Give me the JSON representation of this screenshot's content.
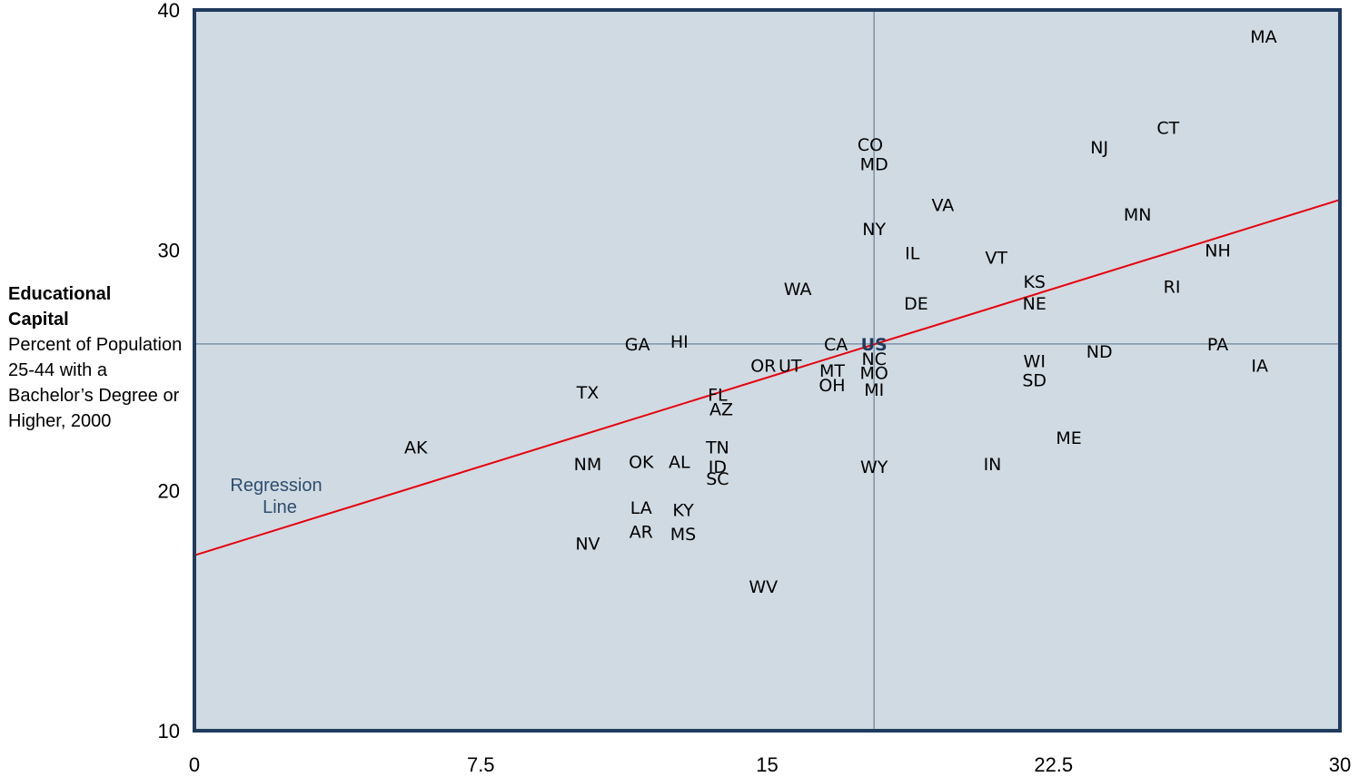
{
  "chart_data": {
    "type": "scatter",
    "ylabel_title": "Educational Capital",
    "ylabel_sub": "Percent of Population 25-44 with a Bachelor’s Degree or Higher, 2000",
    "xlim": [
      0,
      30
    ],
    "ylim": [
      10,
      40
    ],
    "x_ticks": [
      "0",
      "7.5",
      "15",
      "22.5",
      "30"
    ],
    "x_tick_values": [
      0,
      7.5,
      15,
      22.5,
      30
    ],
    "y_ticks": [
      "10",
      "20",
      "30",
      "40"
    ],
    "y_tick_values": [
      10,
      20,
      30,
      40
    ],
    "reference_lines": {
      "x": 17.8,
      "y": 26.1
    },
    "regression_line": {
      "label": "Regression Line",
      "x": [
        0,
        30
      ],
      "y": [
        17.3,
        32.1
      ]
    },
    "points": [
      {
        "label": "MA",
        "x": 28.0,
        "y": 38.9
      },
      {
        "label": "CT",
        "x": 25.5,
        "y": 35.1
      },
      {
        "label": "NJ",
        "x": 23.7,
        "y": 34.3
      },
      {
        "label": "CO",
        "x": 17.7,
        "y": 34.4
      },
      {
        "label": "MD",
        "x": 17.8,
        "y": 33.6
      },
      {
        "label": "VA",
        "x": 19.6,
        "y": 31.9
      },
      {
        "label": "MN",
        "x": 24.7,
        "y": 31.5
      },
      {
        "label": "NY",
        "x": 17.8,
        "y": 30.9
      },
      {
        "label": "IL",
        "x": 18.8,
        "y": 29.9
      },
      {
        "label": "VT",
        "x": 21.0,
        "y": 29.7
      },
      {
        "label": "NH",
        "x": 26.8,
        "y": 30.0
      },
      {
        "label": "KS",
        "x": 22.0,
        "y": 28.7
      },
      {
        "label": "RI",
        "x": 25.6,
        "y": 28.5
      },
      {
        "label": "WA",
        "x": 15.8,
        "y": 28.4
      },
      {
        "label": "DE",
        "x": 18.9,
        "y": 27.8
      },
      {
        "label": "NE",
        "x": 22.0,
        "y": 27.8
      },
      {
        "label": "GA",
        "x": 11.6,
        "y": 26.1
      },
      {
        "label": "HI",
        "x": 12.7,
        "y": 26.2
      },
      {
        "label": "CA",
        "x": 16.8,
        "y": 26.1
      },
      {
        "label": "US",
        "x": 17.8,
        "y": 26.1,
        "highlight": true
      },
      {
        "label": "PA",
        "x": 26.8,
        "y": 26.1
      },
      {
        "label": "ND",
        "x": 23.7,
        "y": 25.8
      },
      {
        "label": "NC",
        "x": 17.8,
        "y": 25.5
      },
      {
        "label": "WI",
        "x": 22.0,
        "y": 25.4
      },
      {
        "label": "IA",
        "x": 27.9,
        "y": 25.2
      },
      {
        "label": "OR",
        "x": 14.9,
        "y": 25.2
      },
      {
        "label": "UT",
        "x": 15.6,
        "y": 25.2
      },
      {
        "label": "MT",
        "x": 16.7,
        "y": 25.0
      },
      {
        "label": "MO",
        "x": 17.8,
        "y": 24.9
      },
      {
        "label": "SD",
        "x": 22.0,
        "y": 24.6
      },
      {
        "label": "OH",
        "x": 16.7,
        "y": 24.4
      },
      {
        "label": "MI",
        "x": 17.8,
        "y": 24.2
      },
      {
        "label": "TX",
        "x": 10.3,
        "y": 24.1
      },
      {
        "label": "FL",
        "x": 13.7,
        "y": 24.0
      },
      {
        "label": "AZ",
        "x": 13.8,
        "y": 23.4
      },
      {
        "label": "ME",
        "x": 22.9,
        "y": 22.2
      },
      {
        "label": "AK",
        "x": 5.8,
        "y": 21.8
      },
      {
        "label": "TN",
        "x": 13.7,
        "y": 21.8
      },
      {
        "label": "NM",
        "x": 10.3,
        "y": 21.1
      },
      {
        "label": "OK",
        "x": 11.7,
        "y": 21.2
      },
      {
        "label": "AL",
        "x": 12.7,
        "y": 21.2
      },
      {
        "label": "IN",
        "x": 20.9,
        "y": 21.1
      },
      {
        "label": "ID",
        "x": 13.7,
        "y": 21.0
      },
      {
        "label": "WY",
        "x": 17.8,
        "y": 21.0
      },
      {
        "label": "SC",
        "x": 13.7,
        "y": 20.5
      },
      {
        "label": "LA",
        "x": 11.7,
        "y": 19.3
      },
      {
        "label": "KY",
        "x": 12.8,
        "y": 19.2
      },
      {
        "label": "AR",
        "x": 11.7,
        "y": 18.3
      },
      {
        "label": "MS",
        "x": 12.8,
        "y": 18.2
      },
      {
        "label": "NV",
        "x": 10.3,
        "y": 17.8
      },
      {
        "label": "WV",
        "x": 14.9,
        "y": 16.0
      }
    ]
  }
}
